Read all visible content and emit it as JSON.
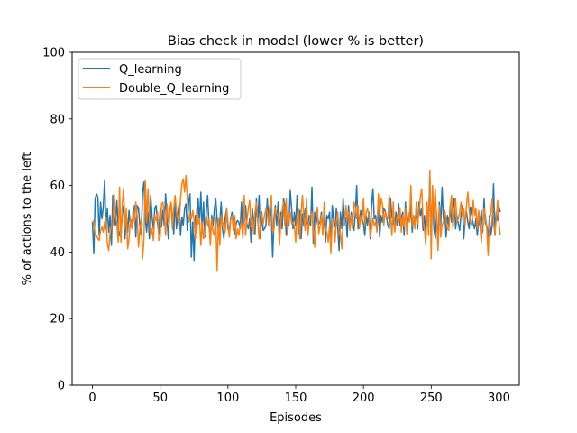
{
  "chart_data": {
    "type": "line",
    "title": "Bias check in model (lower % is better)",
    "xlabel": "Episodes",
    "ylabel": "% of actions to the left",
    "xlim": [
      -15,
      315
    ],
    "ylim": [
      0,
      100
    ],
    "xticks": [
      0,
      50,
      100,
      150,
      200,
      250,
      300
    ],
    "yticks": [
      0,
      20,
      40,
      60,
      80,
      100
    ],
    "legend_position": "upper-left",
    "grid": false,
    "x": {
      "start": 0,
      "end": 299,
      "step": 1
    },
    "series": [
      {
        "name": "Q_learning",
        "color": "#1f77b4",
        "values": [
          49,
          39.5,
          56,
          57.5,
          56.5,
          45,
          55,
          50,
          53.5,
          61.5,
          47,
          53,
          46,
          51,
          42,
          57,
          51,
          48,
          55.5,
          48,
          45,
          44.5,
          51.5,
          54,
          44,
          51,
          46,
          52.5,
          47.5,
          49.5,
          50,
          54,
          44.5,
          54,
          53,
          48,
          45,
          58,
          61,
          50,
          46,
          52,
          44,
          57,
          50.5,
          47,
          53,
          54,
          48.5,
          45.5,
          53,
          47.5,
          52.5,
          48,
          57.5,
          50,
          44,
          52,
          55,
          50,
          45.5,
          56,
          47,
          51.5,
          54.5,
          45,
          50.5,
          48,
          53,
          54.5,
          46.5,
          55,
          57.5,
          38.5,
          49,
          37.5,
          51,
          46,
          56,
          49,
          58,
          46,
          55,
          44.5,
          52,
          57,
          48,
          44,
          51,
          48,
          53,
          56,
          50,
          46,
          49,
          55,
          47,
          44,
          50.5,
          53,
          47,
          46,
          50,
          52,
          48.5,
          45.5,
          48.5,
          49.5,
          49,
          47,
          55,
          45,
          52,
          54,
          48.5,
          47,
          50,
          43,
          53,
          49,
          45.5,
          56,
          49,
          57,
          44,
          52,
          46.5,
          47,
          48,
          56,
          50,
          54,
          51,
          38.5,
          50,
          54,
          48,
          55,
          45,
          52,
          47,
          56,
          54,
          45,
          51,
          48,
          58.5,
          53,
          47,
          52,
          48,
          57,
          45.5,
          52.5,
          44,
          51.5,
          48,
          53,
          49,
          46.5,
          51,
          48,
          59.5,
          42.5,
          52,
          48,
          51,
          48.5,
          49,
          52,
          46,
          52,
          43,
          51,
          50,
          52,
          42,
          54,
          49,
          47.5,
          53,
          47.5,
          40.5,
          52,
          47,
          56,
          49,
          50.5,
          44.5,
          54,
          47,
          52,
          48.5,
          46.5,
          51.5,
          60,
          47,
          49,
          52.5,
          50,
          48.5,
          45,
          51,
          48,
          52,
          44,
          54,
          59,
          50,
          51,
          47,
          53,
          44.5,
          51,
          49,
          53,
          52.5,
          50.5,
          48,
          47,
          56,
          50.5,
          49.5,
          47,
          52,
          48,
          54.5,
          48,
          50.5,
          52,
          45,
          55,
          47,
          51,
          49,
          54,
          46,
          51,
          49.5,
          52,
          47,
          55,
          51,
          53,
          46.5,
          51,
          45,
          52,
          49,
          62.5,
          45,
          57,
          47,
          44,
          52,
          42,
          55,
          48,
          59.5,
          50,
          52,
          44.5,
          51,
          47.5,
          54,
          49,
          52.5,
          56,
          47,
          51,
          48.5,
          46.5,
          51.5,
          54,
          44,
          50,
          52,
          49,
          47,
          53.5,
          51,
          48.5,
          47,
          50,
          45,
          49.5,
          48,
          52.5,
          46,
          56,
          48.5,
          48,
          44,
          51,
          45,
          48,
          60.5,
          45,
          52,
          49.5,
          53.5,
          52
        ]
      },
      {
        "name": "Double_Q_learning",
        "color": "#ff7f0e",
        "values": [
          49.5,
          49,
          45,
          45,
          44,
          43.5,
          46.5,
          47.5,
          46,
          49,
          50.5,
          42.5,
          40.5,
          45.5,
          48,
          48,
          57.5,
          51,
          49,
          43,
          59.5,
          43,
          54.5,
          59,
          47,
          53,
          41,
          44,
          50,
          47,
          52.5,
          49,
          55,
          50.5,
          41.5,
          47,
          49.5,
          38,
          44,
          61.5,
          49,
          59,
          50,
          45,
          47,
          43.5,
          51,
          49.5,
          52,
          43.5,
          44.5,
          54.5,
          55,
          51,
          45,
          54.5,
          49,
          52,
          55,
          47,
          53,
          57,
          52,
          50,
          47.5,
          56,
          60.5,
          62,
          58,
          63,
          56.5,
          49,
          51,
          50,
          52.5,
          49.5,
          44,
          53,
          48.5,
          50,
          42,
          49,
          44,
          45,
          51,
          48,
          50,
          42,
          50,
          46,
          45,
          50.5,
          34.5,
          50,
          42,
          51,
          48,
          49,
          46,
          53,
          49,
          44.5,
          49.5,
          51,
          46.5,
          51,
          44,
          47,
          45,
          48,
          49,
          44,
          57,
          45,
          49.5,
          53,
          55.5,
          47.5,
          50,
          45.5,
          52,
          55,
          49,
          44,
          49,
          51.5,
          48.5,
          51,
          53,
          52,
          48,
          53.5,
          57,
          46,
          47,
          53,
          51.5,
          51,
          42,
          48.5,
          52.5,
          55,
          48,
          56,
          45,
          51,
          52,
          48.5,
          49,
          48,
          43,
          51,
          53,
          44,
          52,
          57,
          50,
          46.5,
          56,
          45,
          49,
          51,
          52,
          47,
          41.5,
          50,
          53.5,
          45.5,
          48,
          51,
          45,
          55,
          47,
          46,
          43,
          48,
          39.5,
          50,
          49.5,
          43,
          49,
          52,
          45,
          46,
          41,
          49,
          48,
          54,
          50,
          52,
          46.5,
          51,
          47,
          55,
          53.5,
          50,
          54,
          47,
          51,
          49,
          56,
          48,
          52,
          53,
          51,
          44.5,
          47,
          50,
          48,
          49,
          46,
          57.5,
          51,
          56,
          54.5,
          48,
          52,
          50.5,
          50,
          57,
          51,
          45,
          55,
          46,
          49,
          51,
          49,
          53,
          46,
          51,
          47.5,
          53,
          45.5,
          52,
          49,
          60,
          48,
          51,
          47,
          55,
          48.5,
          52,
          56.5,
          59,
          49,
          47,
          42,
          55,
          45,
          64.5,
          38,
          60,
          50,
          59,
          50,
          40.5,
          54,
          44.5,
          48,
          49,
          52.5,
          50,
          47,
          46.5,
          53.5,
          57,
          47,
          52,
          56,
          49,
          50,
          52,
          55,
          50.5,
          53,
          48,
          54,
          58,
          52.5,
          49,
          48,
          55.5,
          51,
          53,
          47,
          52.5,
          48,
          43,
          49,
          53,
          51,
          47,
          39,
          49.5,
          52,
          56,
          48.5,
          45.5,
          50,
          55.5,
          49,
          45
        ]
      }
    ]
  }
}
